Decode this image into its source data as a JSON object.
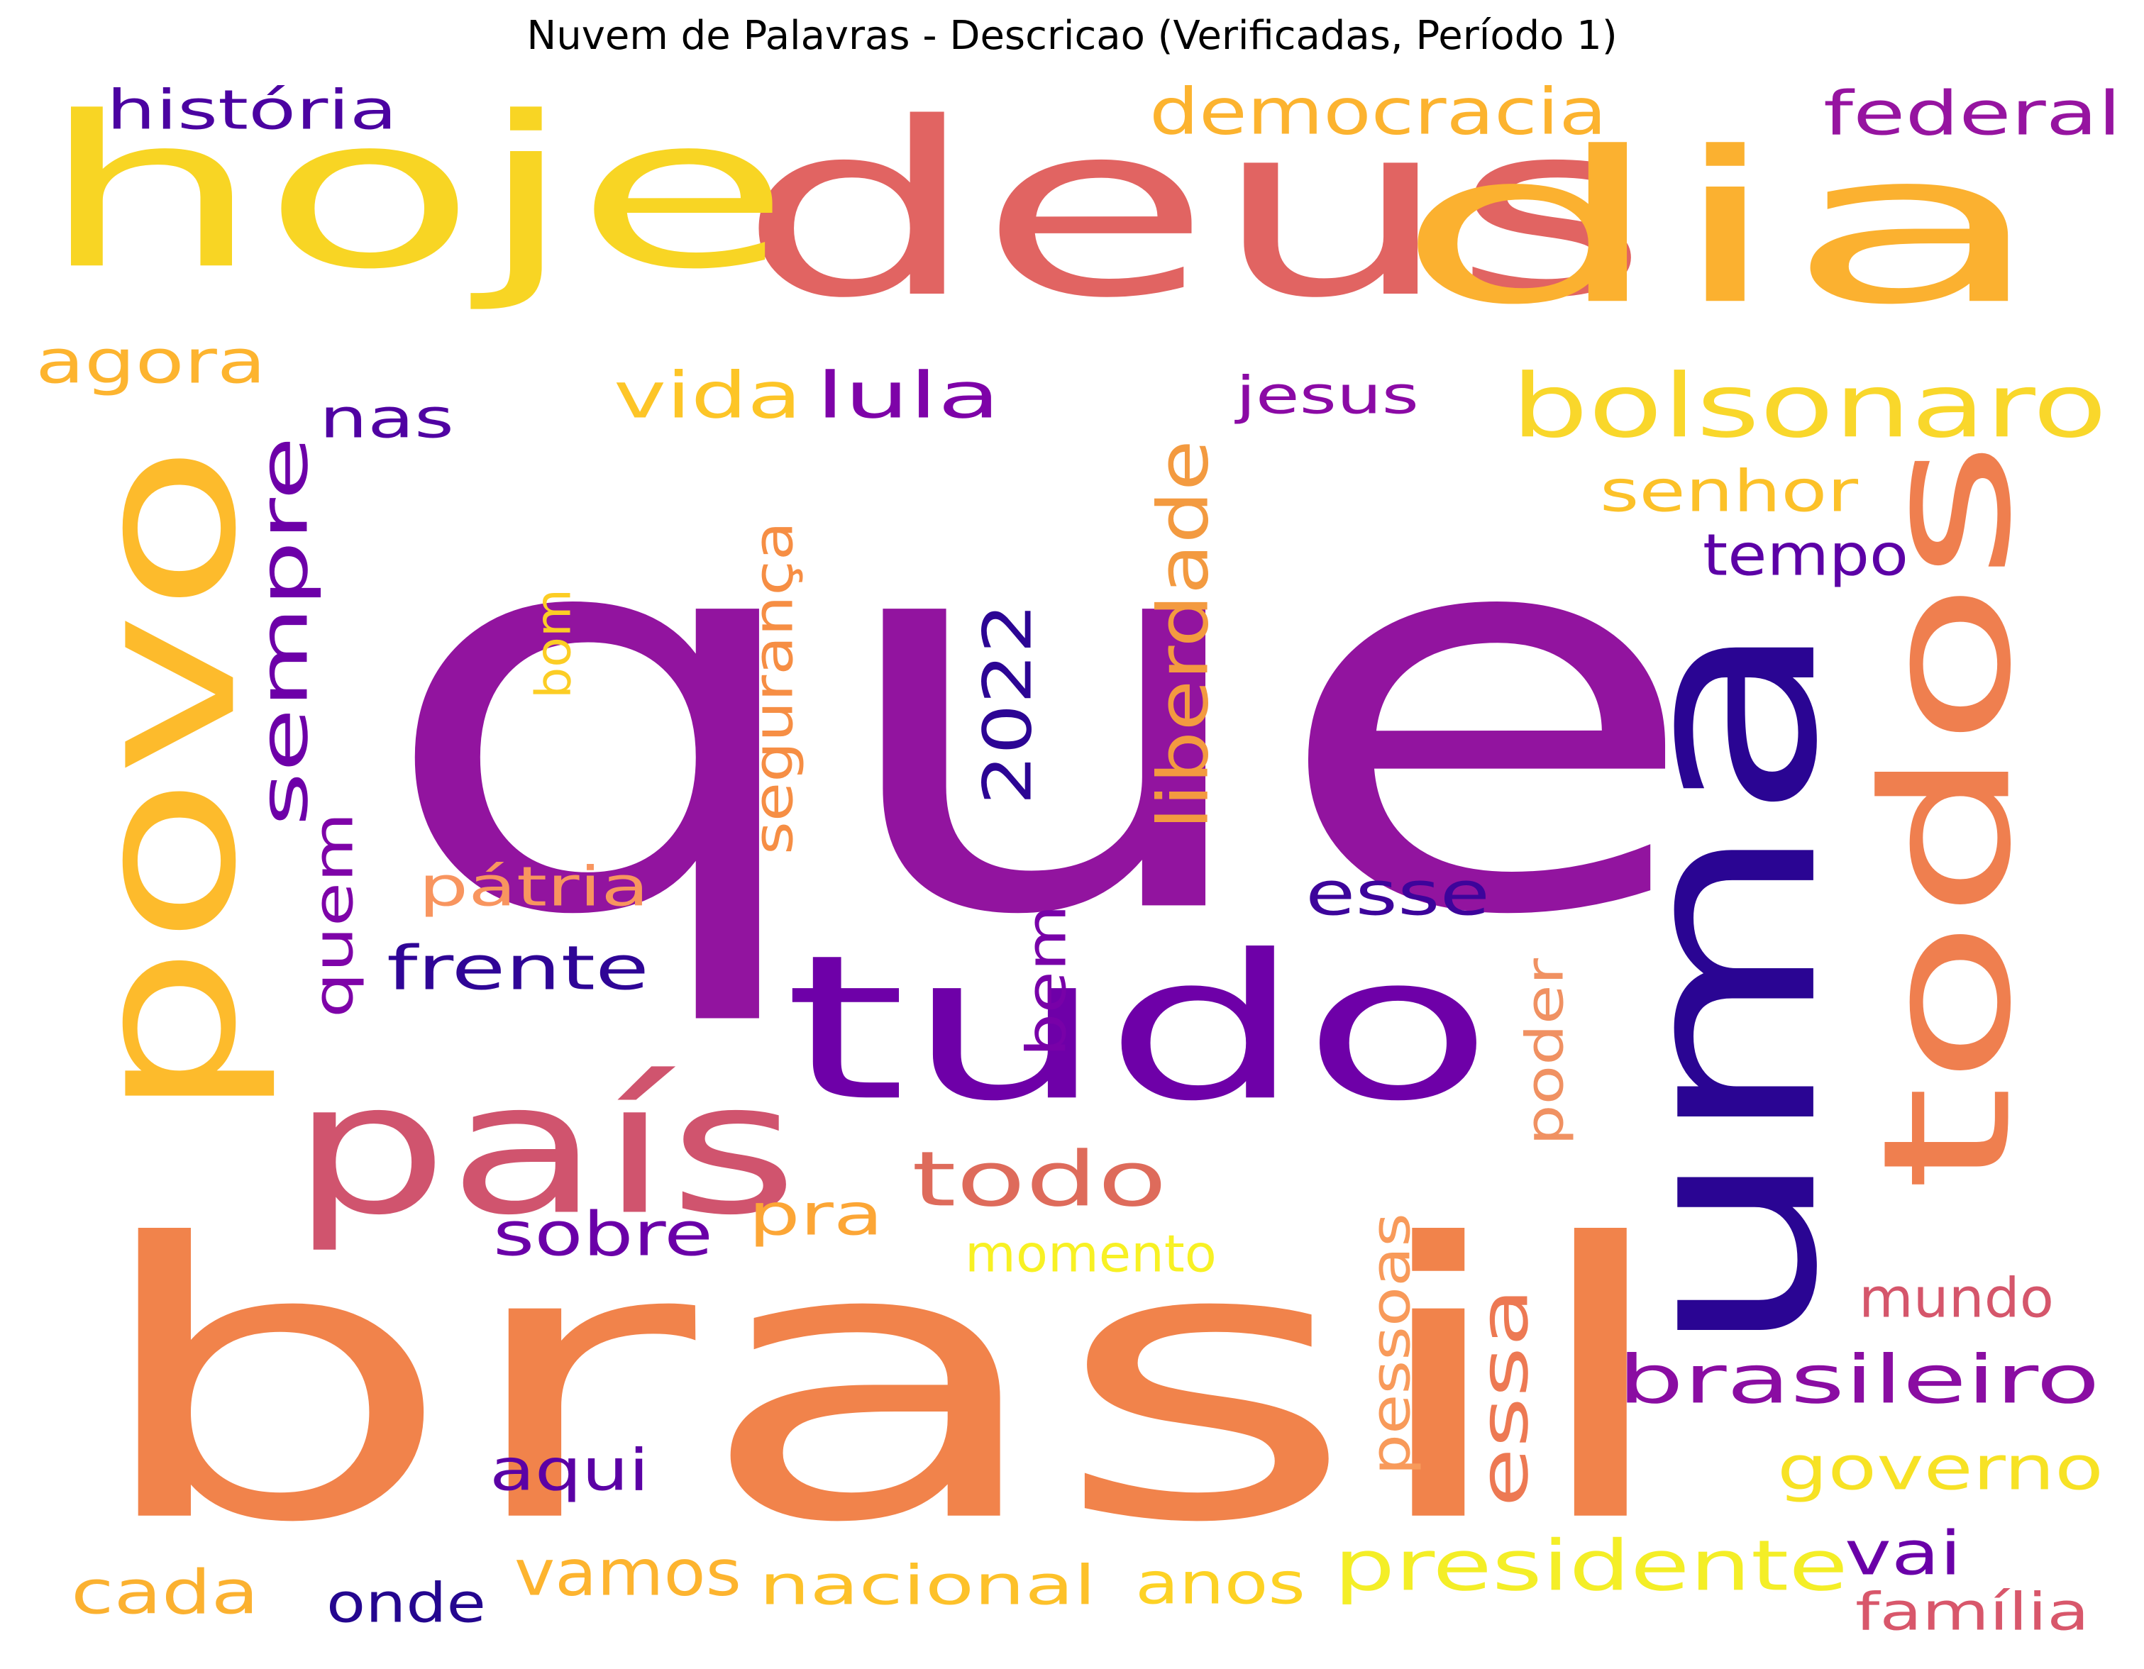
{
  "title": "Nuvem de Palavras - Descricao (Verificadas, Período 1)",
  "colormap": "plasma",
  "words": [
    {
      "text": "que",
      "color": "#92149f"
    },
    {
      "text": "brasil",
      "color": "#f1834b"
    },
    {
      "text": "deus",
      "color": "#e16462"
    },
    {
      "text": "uma",
      "color": "#2a0593"
    },
    {
      "text": "hoje",
      "color": "#f8d524"
    },
    {
      "text": "dia",
      "color": "#fbb130"
    },
    {
      "text": "povo",
      "color": "#fdbb2c"
    },
    {
      "text": "todos",
      "color": "#ef7f4f"
    },
    {
      "text": "tudo",
      "color": "#6e00a8"
    },
    {
      "text": "país",
      "color": "#d0546e"
    },
    {
      "text": "bolsonaro",
      "color": "#f9d72b"
    },
    {
      "text": "sempre",
      "color": "#6d00a8"
    },
    {
      "text": "todo",
      "color": "#de6b5b"
    },
    {
      "text": "presidente",
      "color": "#f4ee27"
    },
    {
      "text": "brasileiro",
      "color": "#8a0da2"
    },
    {
      "text": "democracia",
      "color": "#fcb32f"
    },
    {
      "text": "agora",
      "color": "#fdb42f"
    },
    {
      "text": "vida",
      "color": "#fdc527"
    },
    {
      "text": "lula",
      "color": "#7e03a8"
    },
    {
      "text": "vamos",
      "color": "#fdb42f"
    },
    {
      "text": "governo",
      "color": "#f7e225"
    },
    {
      "text": "federal",
      "color": "#9614a0"
    },
    {
      "text": "senhor",
      "color": "#fcc129"
    },
    {
      "text": "liberdade",
      "color": "#f39a40"
    },
    {
      "text": "nacional",
      "color": "#fdc12a"
    },
    {
      "text": "cada",
      "color": "#fbb130"
    },
    {
      "text": "esse",
      "color": "#3d049b"
    },
    {
      "text": "essa",
      "color": "#ed7953"
    },
    {
      "text": "frente",
      "color": "#2f0596"
    },
    {
      "text": "quem",
      "color": "#7e03a8"
    },
    {
      "text": "história",
      "color": "#4b03a1"
    },
    {
      "text": "nas",
      "color": "#5002a2"
    },
    {
      "text": "tempo",
      "color": "#5c01a6"
    },
    {
      "text": "sobre",
      "color": "#6a00a8"
    },
    {
      "text": "pra",
      "color": "#fca636"
    },
    {
      "text": "jesus",
      "color": "#8b0aa5"
    },
    {
      "text": "2022",
      "color": "#2c0594"
    },
    {
      "text": "segurança",
      "color": "#f68e44"
    },
    {
      "text": "pátria",
      "color": "#f8955f"
    },
    {
      "text": "anos",
      "color": "#fdd225"
    },
    {
      "text": "vai",
      "color": "#6a00a8"
    },
    {
      "text": "momento",
      "color": "#f8f124"
    },
    {
      "text": "mundo",
      "color": "#d5566b"
    },
    {
      "text": "pessoas",
      "color": "#f89a5a"
    },
    {
      "text": "poder",
      "color": "#f09162"
    },
    {
      "text": "bem",
      "color": "#7801a8"
    },
    {
      "text": "bom",
      "color": "#fccd25"
    },
    {
      "text": "aqui",
      "color": "#5b01a5"
    },
    {
      "text": "onde",
      "color": "#24068f"
    },
    {
      "text": "família",
      "color": "#d8576b"
    }
  ]
}
